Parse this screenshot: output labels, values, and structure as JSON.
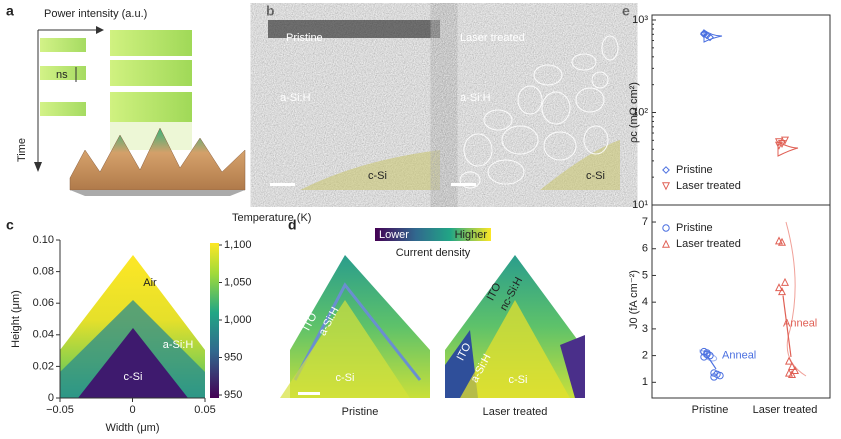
{
  "panel_labels": [
    "a",
    "b",
    "c",
    "d",
    "e"
  ],
  "panel_a": {
    "axis_top": "Power intensity (a.u.)",
    "pulse_width": "ns",
    "axis_left": "Time"
  },
  "panel_b": {
    "left_title": "Pristine",
    "right_title": "Laser treated",
    "left_layer": "a-Si:H",
    "right_layer": "a-Si:H",
    "left_substrate": "c-Si",
    "right_substrate": "c-Si"
  },
  "panel_d": {
    "scale_low": "Lower",
    "scale_high": "Higher",
    "scale_title": "Current density",
    "left": {
      "ito": "ITO",
      "layer": "a-Si:H",
      "substrate": "c-Si",
      "caption": "Pristine"
    },
    "right": {
      "ito": "ITO",
      "layer_top": "nc-Si:H",
      "layer_bottom": "a-Si:H",
      "substrate": "c-Si",
      "caption": "Laser treated"
    }
  },
  "chart_data": [
    {
      "type": "contour",
      "xlabel": "Width (μm)",
      "ylabel": "Height (μm)",
      "xlim": [
        -0.05,
        0.05
      ],
      "xticks": [
        {
          "value": -0.05,
          "label": "−0.05"
        },
        0,
        0.05
      ],
      "ylim": [
        0,
        0.1
      ],
      "yticks": [
        0,
        0.02,
        0.04,
        0.06,
        0.08,
        {
          "value": 0.1,
          "label": "0.10"
        }
      ],
      "regions": [
        "Air",
        "a-Si:H",
        "c-Si"
      ],
      "colorbar": {
        "title": "Temperature (K)",
        "labels": [
          "1,100",
          "1,050",
          "1,000",
          "950",
          "950"
        ]
      }
    },
    {
      "type": "scatter",
      "log": true,
      "ylabel": "ρc (mΩ cm²)",
      "ylim": [
        10,
        1000
      ],
      "yticks": [
        {
          "value": 10,
          "label": "10¹"
        },
        {
          "value": 100,
          "label": "10²"
        },
        {
          "value": 1000,
          "label": "10³"
        }
      ],
      "series": [
        {
          "name": "Pristine",
          "color": "#4a6fe0",
          "marker": "diamond",
          "values": [
            720,
            680,
            650,
            700
          ]
        },
        {
          "name": "Laser treated",
          "color": "#e06055",
          "marker": "triangle-down",
          "values": [
            48,
            46,
            50,
            44
          ]
        }
      ]
    },
    {
      "type": "scatter",
      "ylabel": "J0 (fA cm⁻²)",
      "categories": [
        "Pristine",
        "Laser treated"
      ],
      "ylim": [
        0.6,
        7.6
      ],
      "yticks": [
        1,
        2,
        3,
        4,
        5,
        6,
        7
      ],
      "series": [
        {
          "name": "Pristine",
          "color": "#4a6fe0",
          "marker": "circle",
          "values": [
            2.15,
            2.05,
            2.0,
            1.95,
            2.1
          ],
          "annealed_values": [
            1.35,
            1.3,
            1.25,
            1.2
          ],
          "annotation": "Anneal"
        },
        {
          "name": "Laser treated",
          "color": "#e06055",
          "marker": "triangle",
          "values": [
            6.3,
            6.25,
            4.75,
            4.55,
            4.4
          ],
          "annealed_values": [
            1.8,
            1.6,
            1.45,
            1.35,
            1.3
          ],
          "annotation": "Anneal"
        }
      ]
    }
  ]
}
